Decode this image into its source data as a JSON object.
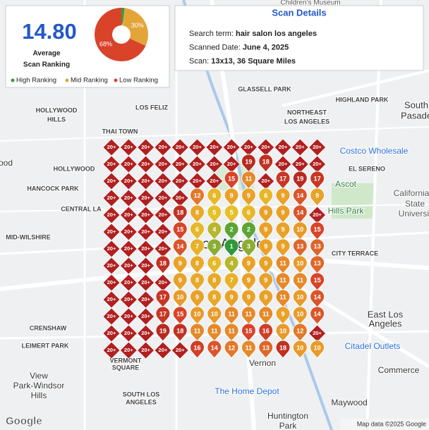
{
  "summary": {
    "average": "14.80",
    "average_label": [
      "Average",
      "Scan Ranking"
    ]
  },
  "pie": {
    "type": "pie",
    "values": [
      2,
      30,
      68
    ],
    "value_labels": [
      "2%",
      "30%",
      "68%"
    ],
    "colors": [
      "#3a9a3a",
      "#e3a53a",
      "#d9432a"
    ],
    "legend": [
      "High Ranking",
      "Mid Ranking",
      "Low Ranking"
    ]
  },
  "details": {
    "title": "Scan Details",
    "rows": [
      {
        "label": "Search term:",
        "value": "hair salon los angeles"
      },
      {
        "label": "Scanned Date:",
        "value": "June 4, 2025"
      },
      {
        "label": "Scan:",
        "value": "13x13, 36 Square Miles"
      }
    ]
  },
  "grid": {
    "rows": [
      [
        "20+",
        "20+",
        "20+",
        "20+",
        "20+",
        "20+",
        "20+",
        "20+",
        "20+",
        "20+",
        "20+",
        "20+",
        "20+"
      ],
      [
        "20+",
        "20+",
        "20+",
        "20+",
        "20+",
        "20+",
        "20+",
        "20+",
        19,
        18,
        "20+",
        "20+",
        "20+"
      ],
      [
        "20+",
        "20+",
        "20+",
        "20+",
        "20+",
        "20+",
        "20+",
        15,
        11,
        "20+",
        17,
        19,
        17
      ],
      [
        "20+",
        "20+",
        "20+",
        "20+",
        "20+",
        12,
        6,
        9,
        9,
        6,
        9,
        14,
        9
      ],
      [
        "20+",
        "20+",
        "20+",
        "20+",
        18,
        8,
        5,
        5,
        6,
        9,
        9,
        14,
        "20+"
      ],
      [
        "20+",
        "20+",
        "20+",
        "20+",
        15,
        6,
        4,
        2,
        2,
        9,
        9,
        10,
        15
      ],
      [
        "20+",
        "20+",
        "20+",
        "20+",
        14,
        7,
        3,
        1,
        3,
        9,
        9,
        13,
        13
      ],
      [
        "20+",
        "20+",
        "20+",
        18,
        9,
        8,
        6,
        4,
        9,
        9,
        11,
        10,
        13
      ],
      [
        "20+",
        "20+",
        "20+",
        "20+",
        9,
        8,
        8,
        7,
        9,
        9,
        11,
        11,
        15
      ],
      [
        "20+",
        "20+",
        "20+",
        17,
        10,
        9,
        8,
        9,
        9,
        9,
        11,
        10,
        14
      ],
      [
        "20+",
        "20+",
        "20+",
        17,
        15,
        10,
        10,
        11,
        11,
        11,
        9,
        10,
        14
      ],
      [
        "20+",
        "20+",
        "20+",
        19,
        18,
        11,
        11,
        11,
        15,
        16,
        10,
        12,
        "20+"
      ],
      [
        "20+",
        "20+",
        "20+",
        "20+",
        "20+",
        16,
        14,
        12,
        11,
        13,
        18,
        10,
        10
      ]
    ]
  },
  "map_labels": [
    "Children's Museum",
    "GLASSELL PARK",
    "HIGHLAND PARK",
    "South",
    "Pasade",
    "NORTHEAST",
    "LOS ANGELES",
    "HOLLYWOOD",
    "HILLS",
    "LOS FELIZ",
    "THAI TOWN",
    "Costco Wholesale",
    "EL SERENO",
    "HOLLYWOOD",
    "ood",
    "HANCOCK PARK",
    "CENTRAL LA",
    "Ascot",
    "Hills Park",
    "California",
    "State",
    "Universit",
    "MID-WILSHIRE",
    "CITY TERRACE",
    "Los Angeles",
    "East Los",
    "Angeles",
    "CRENSHAW",
    "LEIMERT PARK",
    "Citadel Outlets",
    "VERMONT",
    "SQUARE",
    "Vernon",
    "Commerce",
    "View",
    "Park-Windsor",
    "Hills",
    "The Home Depot",
    "SOUTH LOS",
    "ANGELES",
    "Huntington",
    "Park",
    "Maywood"
  ],
  "footer": "Map data ©2025 Google",
  "logo": "Google"
}
